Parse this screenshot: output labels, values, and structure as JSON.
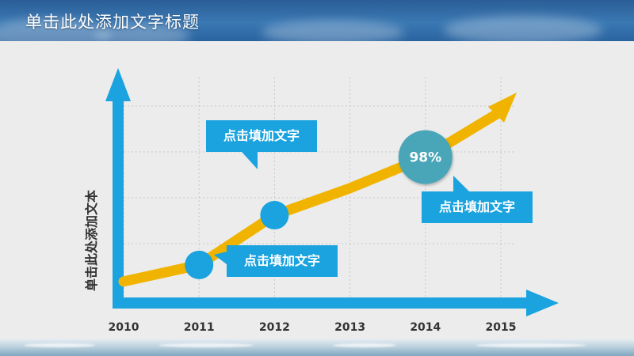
{
  "header": {
    "title": "单击此处添加文字标题"
  },
  "axis": {
    "y_label": "单击此处添加文本"
  },
  "colors": {
    "accent_blue": "#1aa3de",
    "line_yellow": "#f0b400",
    "percent_circle": "#4aa5b8"
  },
  "chart_data": {
    "type": "line",
    "categories": [
      "2010",
      "2011",
      "2012",
      "2013",
      "2014",
      "2015"
    ],
    "series": [
      {
        "values": [
          10,
          18,
          42,
          55,
          70,
          92
        ]
      }
    ],
    "markers": [
      {
        "category": "2011",
        "label": ""
      },
      {
        "category": "2012",
        "label": ""
      },
      {
        "category": "2014",
        "label": "98%"
      }
    ]
  },
  "callouts": [
    {
      "text": "点击填加文字"
    },
    {
      "text": "点击填加文字"
    },
    {
      "text": "点击填加文字"
    }
  ]
}
